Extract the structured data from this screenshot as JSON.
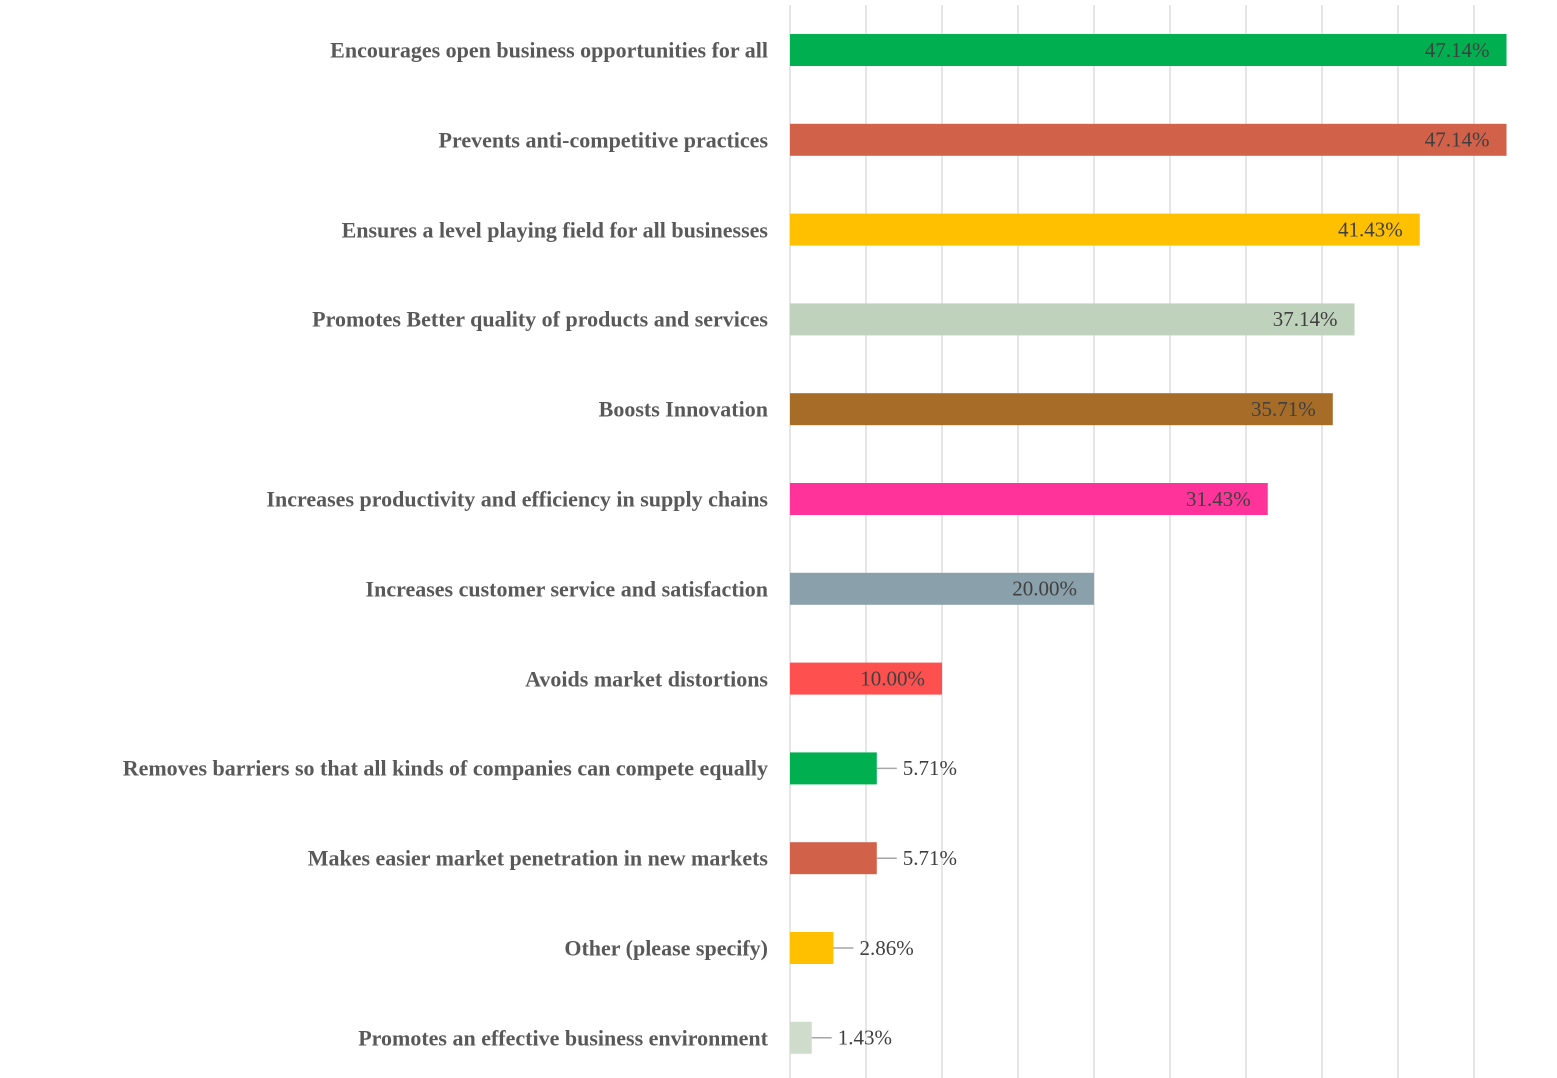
{
  "chart_data": {
    "type": "bar",
    "orientation": "horizontal",
    "categories": [
      "Encourages open business opportunities for all",
      "Prevents anti-competitive practices",
      "Ensures a level playing field for all businesses",
      "Promotes Better quality of products and services",
      "Boosts Innovation",
      "Increases productivity and efficiency in supply chains",
      "Increases customer service and satisfaction",
      "Avoids market distortions",
      "Removes barriers so that all kinds of companies can compete equally",
      "Makes easier market penetration in new markets",
      "Other (please specify)",
      "Promotes an effective business environment"
    ],
    "values": [
      47.14,
      47.14,
      41.43,
      37.14,
      35.71,
      31.43,
      20.0,
      10.0,
      5.71,
      5.71,
      2.86,
      1.43
    ],
    "value_labels": [
      "47.14%",
      "47.14%",
      "41.43%",
      "37.14%",
      "35.71%",
      "31.43%",
      "20.00%",
      "10.00%",
      "5.71%",
      "5.71%",
      "2.86%",
      "1.43%"
    ],
    "colors": [
      "#00b050",
      "#d2614a",
      "#ffc000",
      "#bfd2bc",
      "#a66c28",
      "#ff3399",
      "#8aa1ab",
      "#ff5050",
      "#00b050",
      "#d2614a",
      "#ffc000",
      "#cfdccb"
    ],
    "xlim": [
      0,
      50
    ],
    "xticks": [
      0,
      5,
      10,
      15,
      20,
      25,
      30,
      35,
      40,
      45
    ],
    "grid": true
  }
}
